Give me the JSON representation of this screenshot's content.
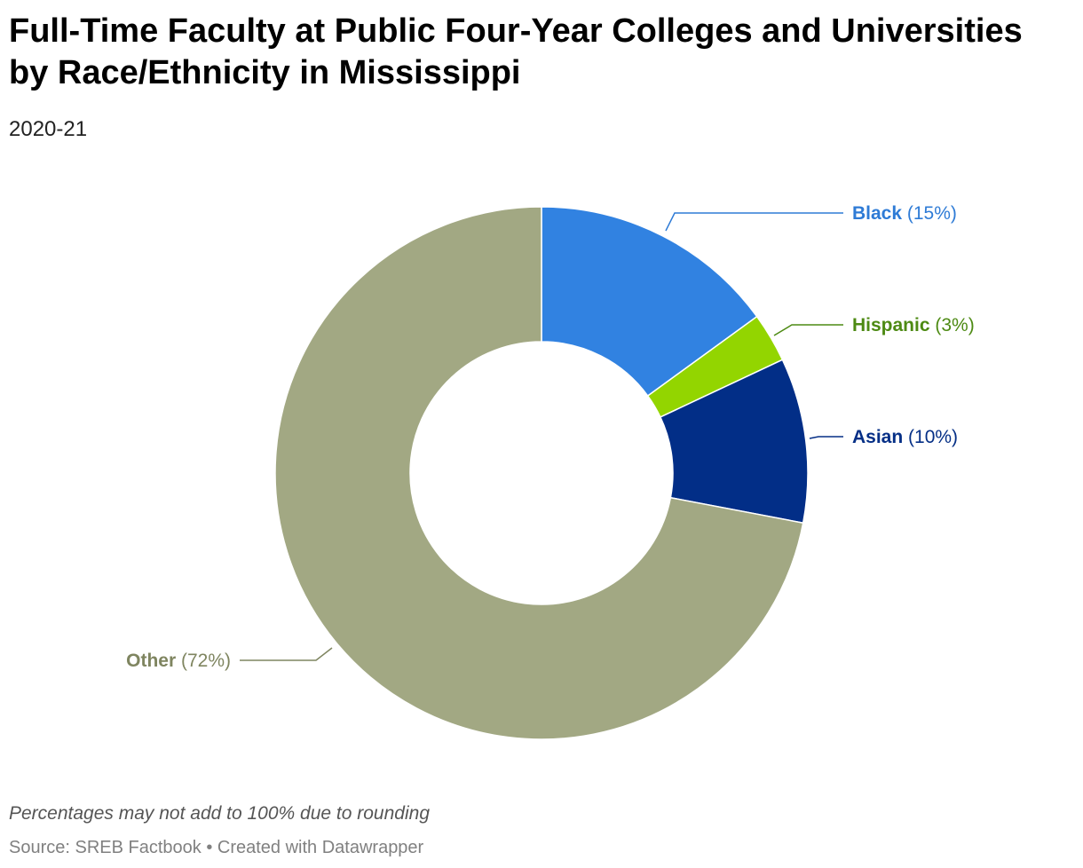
{
  "title": "Full-Time Faculty at Public Four-Year Colleges and Universities by Race/Ethnicity in Mississippi",
  "subtitle": "2020-21",
  "footnote": "Percentages may not add to 100% due to rounding",
  "source": "Source: SREB Factbook • Created with Datawrapper",
  "chart_data": {
    "type": "pie",
    "donut": true,
    "unit": "%",
    "slices": [
      {
        "label": "Black",
        "value": 15,
        "display": "(15%)",
        "color": "#3182e1",
        "label_color": "#2e7bd6"
      },
      {
        "label": "Hispanic",
        "value": 3,
        "display": "(3%)",
        "color": "#93d500",
        "label_color": "#4d8a13"
      },
      {
        "label": "Asian",
        "value": 10,
        "display": "(10%)",
        "color": "#022e87",
        "label_color": "#052f86"
      },
      {
        "label": "Other",
        "value": 72,
        "display": "(72%)",
        "color": "#a2a883",
        "label_color": "#7f8560"
      }
    ]
  }
}
